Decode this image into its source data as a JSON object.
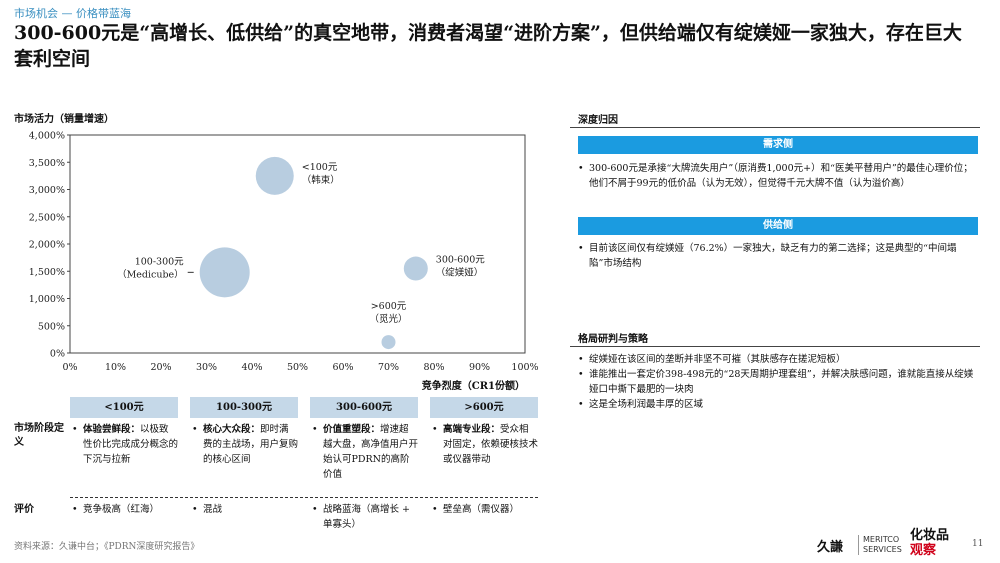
{
  "header": {
    "breadcrumb": "市场机会 — 价格带蓝海",
    "headline": "300-600元是“高增长、低供给”的真空地带，消费者渴望“进阶方案”，但供给端仅有绽媄娅一家独大，存在巨大套利空间"
  },
  "chart_data": {
    "type": "scatter",
    "ylabel": "市场活力（销量增速）",
    "xlabel": "竞争烈度（CR1份额）",
    "x_ticks": [
      "0%",
      "10%",
      "20%",
      "30%",
      "40%",
      "50%",
      "60%",
      "70%",
      "80%",
      "90%",
      "100%"
    ],
    "y_ticks": [
      "0%",
      "500%",
      "1,000%",
      "1,500%",
      "2,000%",
      "2,500%",
      "3,000%",
      "3,500%",
      "4,000%"
    ],
    "xlim": [
      0,
      100
    ],
    "ylim": [
      0,
      4000
    ],
    "bubble_color": "#b8cde0",
    "points": [
      {
        "label": "<100元\n（韩束）",
        "x": 45,
        "y": 3250,
        "size": 19,
        "label_side": "right"
      },
      {
        "label": "100-300元\n（Medicube）",
        "x": 34,
        "y": 1480,
        "size": 25,
        "label_side": "left"
      },
      {
        "label": "300-600元\n（绽媄娅）",
        "x": 76,
        "y": 1550,
        "size": 12,
        "label_side": "right"
      },
      {
        "label": ">600元\n（觅光）",
        "x": 70,
        "y": 200,
        "size": 7,
        "label_side": "top"
      }
    ]
  },
  "segments": {
    "row_label_stage": "市场阶段定义",
    "row_label_eval": "评价",
    "columns": [
      {
        "header": "<100元",
        "stage_title": "体验尝鲜段：",
        "stage_text": "以极致性价比完成成分概念的下沉与拉新",
        "eval": "竞争极高（红海）"
      },
      {
        "header": "100-300元",
        "stage_title": "核心大众段：",
        "stage_text": "即时满费的主战场，用户复购的核心区间",
        "eval": "混战"
      },
      {
        "header": "300-600元",
        "stage_title": "价值重塑段：",
        "stage_text": "增速超越大盘，高净值用户开始认可PDRN的高阶价值",
        "eval": "战略蓝海（高增长 + 单寡头）"
      },
      {
        "header": ">600元",
        "stage_title": "高端专业段：",
        "stage_text": "受众相对固定，依赖硬核技术或仪器带动",
        "eval": "壁垒高（需仪器）"
      }
    ]
  },
  "right_panel": {
    "section1_title": "深度归因",
    "demand_label": "需求侧",
    "demand_text": "300-600元是承接“大牌流失用户”（原消费1,000元+）和“医美平替用户”的最佳心理价位；他们不屑于99元的低价品（认为无效），但觉得千元大牌不值（认为溢价高）",
    "supply_label": "供给侧",
    "supply_text": "目前该区间仅有绽媄娅（76.2%）一家独大，缺乏有力的第二选择；这是典型的“中间塌陷”市场结构",
    "section2_title": "格局研判与策略",
    "strategy_items": [
      "绽媄娅在该区间的垄断并非坚不可摧（其肤感存在搓泥短板）",
      "谁能推出一套定价398-498元的“28天周期护理套组”，并解决肤感问题，谁就能直接从绽媄娅口中撕下最肥的一块肉",
      "这是全场利润最丰厚的区域"
    ]
  },
  "footer": {
    "source": "资料来源：久谦中台；《PDRN深度研究报告》",
    "logo1_main": "久謙",
    "logo1_sub1": "MERITCO",
    "logo1_sub2": "SERVICES",
    "logo2_line1": "化妆品",
    "logo2_line2": "观察",
    "page_number": "11"
  }
}
